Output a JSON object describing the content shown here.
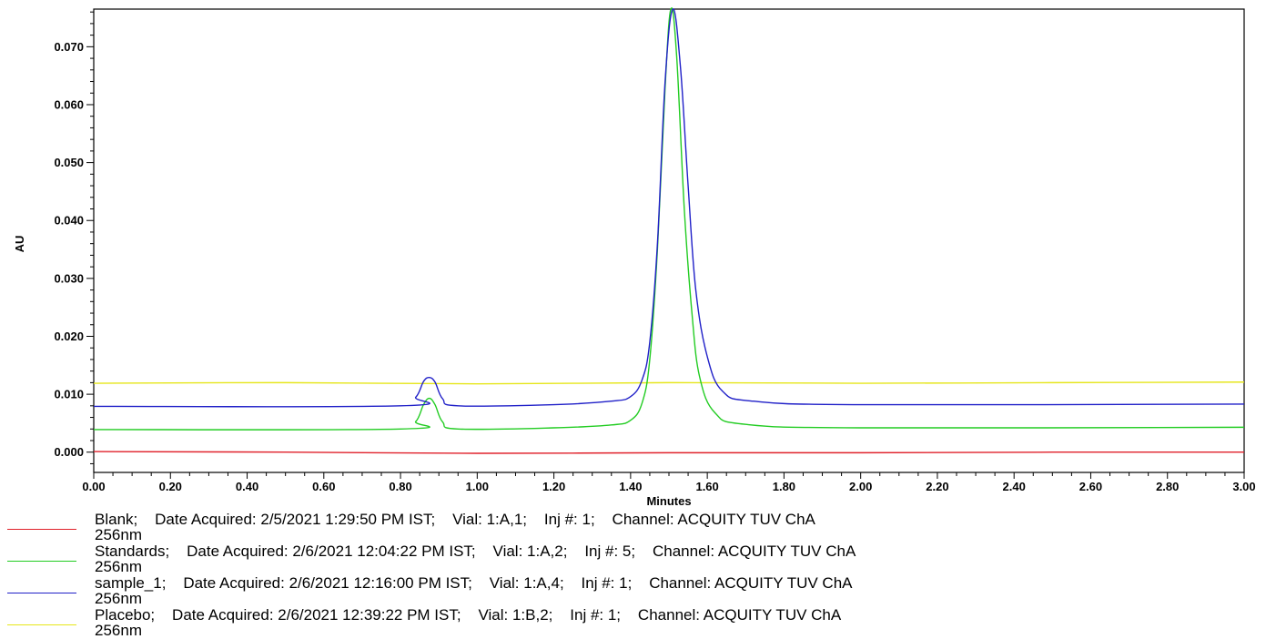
{
  "chart_data": {
    "type": "line",
    "xlabel": "Minutes",
    "ylabel": "AU",
    "xlim": [
      0,
      3.0
    ],
    "ylim": [
      -0.0035,
      0.0765
    ],
    "x_ticks": [
      "0.00",
      "0.20",
      "0.40",
      "0.60",
      "0.80",
      "1.00",
      "1.20",
      "1.40",
      "1.60",
      "1.80",
      "2.00",
      "2.20",
      "2.40",
      "2.60",
      "2.80",
      "3.00"
    ],
    "y_ticks": [
      "0.000",
      "0.010",
      "0.020",
      "0.030",
      "0.040",
      "0.050",
      "0.060",
      "0.070"
    ],
    "grid": false,
    "legend_position": "bottom",
    "series": [
      {
        "name": "Blank",
        "color": "#e0202a",
        "x": [
          0.0,
          0.5,
          1.0,
          1.5,
          2.0,
          2.5,
          3.0
        ],
        "y": [
          0.0001,
          0.0,
          -0.0002,
          -0.0001,
          -0.0001,
          0.0,
          0.0
        ],
        "legend_text": "Blank;    Date Acquired: 2/5/2021 1:29:50 PM IST;    Vial: 1:A,1;    Inj #: 1;    Channel: ACQUITY TUV ChA",
        "legend_wavelength": "256nm"
      },
      {
        "name": "Standards",
        "color": "#22cc22",
        "x": [
          0.0,
          0.8,
          0.84,
          0.86,
          0.875,
          0.89,
          0.91,
          0.95,
          1.2,
          1.35,
          1.4,
          1.43,
          1.45,
          1.47,
          1.49,
          1.505,
          1.52,
          1.54,
          1.56,
          1.58,
          1.62,
          1.7,
          2.0,
          3.0
        ],
        "y": [
          0.0039,
          0.004,
          0.0053,
          0.0082,
          0.0093,
          0.0082,
          0.0052,
          0.004,
          0.0042,
          0.0047,
          0.0055,
          0.0085,
          0.016,
          0.035,
          0.063,
          0.0765,
          0.0685,
          0.042,
          0.024,
          0.013,
          0.0068,
          0.0048,
          0.0042,
          0.0043
        ],
        "legend_text": "Standards;    Date Acquired: 2/6/2021 12:04:22 PM IST;    Vial: 1:A,2;    Inj #: 5;    Channel: ACQUITY TUV ChA",
        "legend_wavelength": "256nm"
      },
      {
        "name": "sample_1",
        "color": "#2020c8",
        "x": [
          0.0,
          0.8,
          0.84,
          0.86,
          0.875,
          0.89,
          0.91,
          0.95,
          1.2,
          1.35,
          1.4,
          1.43,
          1.45,
          1.47,
          1.49,
          1.51,
          1.53,
          1.55,
          1.57,
          1.6,
          1.64,
          1.72,
          2.0,
          3.0
        ],
        "y": [
          0.0079,
          0.008,
          0.0095,
          0.0122,
          0.0129,
          0.0121,
          0.0092,
          0.008,
          0.0082,
          0.0088,
          0.0096,
          0.0125,
          0.019,
          0.036,
          0.064,
          0.0765,
          0.0665,
          0.046,
          0.028,
          0.0165,
          0.0105,
          0.0088,
          0.0082,
          0.0083
        ],
        "legend_text": "sample_1;    Date Acquired: 2/6/2021 12:16:00 PM IST;    Vial: 1:A,4;    Inj #: 1;    Channel: ACQUITY TUV ChA",
        "legend_wavelength": "256nm"
      },
      {
        "name": "Placebo",
        "color": "#e6e61a",
        "x": [
          0.0,
          0.5,
          1.0,
          1.5,
          2.0,
          2.5,
          3.0
        ],
        "y": [
          0.0119,
          0.012,
          0.0118,
          0.012,
          0.0119,
          0.012,
          0.0121
        ],
        "legend_text": "Placebo;    Date Acquired: 2/6/2021 12:39:22 PM IST;    Vial: 1:B,2;    Inj #: 1;    Channel: ACQUITY TUV ChA",
        "legend_wavelength": "256nm"
      }
    ]
  }
}
